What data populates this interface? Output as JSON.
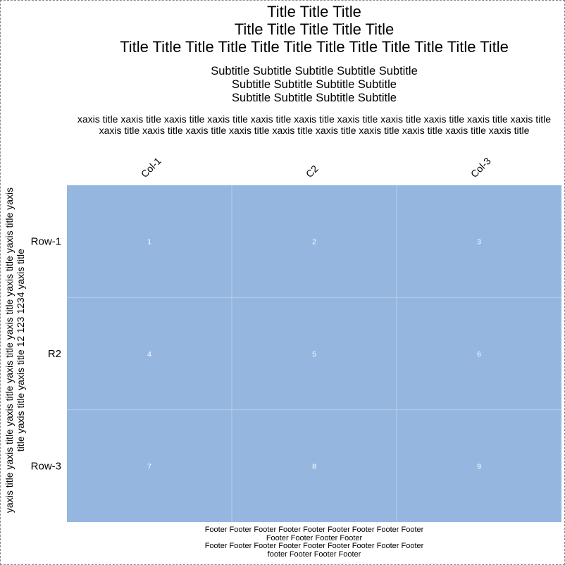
{
  "chart_data": {
    "type": "heatmap",
    "title": "Title Title Title Title Title Title Title Title Title Title Title Title Title Title Title Title Title Title Title Title",
    "subtitle": "Subtitle Subtitle Subtitle Subtitle Subtitle Subtitle Subtitle Subtitle Subtitle Subtitle Subtitle Subtitle Subtitle",
    "xlabel": "xaxis title xaxis title xaxis title xaxis title xaxis title xaxis title xaxis title xaxis title xaxis title xaxis title xaxis title xaxis title xaxis title xaxis title xaxis title xaxis title xaxis title xaxis title xaxis title xaxis title xaxis title",
    "ylabel": "yaxis title yaxis title yaxis title yaxis title yaxis title yaxis title yaxis title yaxis title yaxis title yaxis title 12 123 1234 yaxis title",
    "footer": "Footer Footer Footer Footer Footer Footer Footer Footer Footer Footer Footer Footer Footer Footer Footer Footer Footer Footer Footer Footer footer Footer Footer Footer",
    "columns": [
      "Col-1",
      "C2",
      "Col-3"
    ],
    "rows": [
      "Row-1",
      "R2",
      "Row-3"
    ],
    "values": [
      [
        1,
        2,
        3
      ],
      [
        4,
        5,
        6
      ],
      [
        7,
        8,
        9
      ]
    ],
    "cell_color": "#95b6df",
    "grid_color": "#b7cdea",
    "cell_text_color": "#ffffff",
    "grid": true
  }
}
